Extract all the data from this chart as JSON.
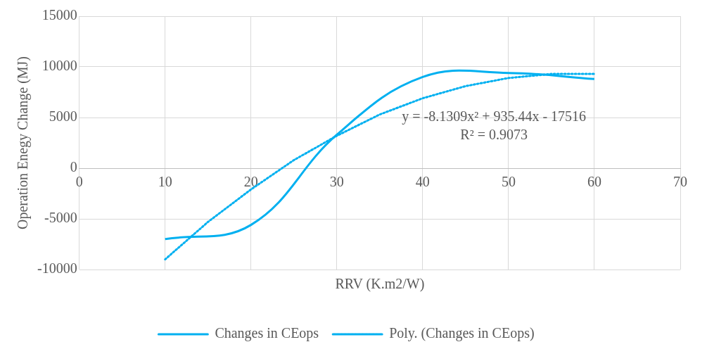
{
  "chart_data": {
    "type": "line",
    "xlabel": "RRV (K.m2/W)",
    "ylabel": "Operation Enegy Change (MJ)",
    "xlim": [
      0,
      70
    ],
    "xticks": [
      0,
      10,
      20,
      30,
      40,
      50,
      60,
      70
    ],
    "ylim": [
      -10000,
      15000
    ],
    "yticks": [
      -10000,
      -5000,
      0,
      5000,
      10000,
      15000
    ],
    "grid": true,
    "legend": "bottom",
    "marker": "none",
    "series": [
      {
        "name": "Changes in CEops",
        "color": "#00b0f0",
        "line_style": "solid",
        "x": [
          10,
          20,
          30,
          40,
          50,
          60
        ],
        "values": [
          -7000,
          -5600,
          3300,
          9000,
          9400,
          8800
        ]
      },
      {
        "name": "Poly. (Changes in CEops)",
        "color": "#00b0f0",
        "line_style": "dotted",
        "x": [
          10,
          15,
          20,
          25,
          30,
          35,
          40,
          45,
          50,
          55,
          60
        ],
        "values": [
          -9000,
          -5300,
          -2100,
          800,
          3200,
          5300,
          6900,
          8100,
          8900,
          9300,
          9300
        ]
      }
    ],
    "annotations": [
      "y = -8.1309x² + 935.44x - 17516",
      "R² = 0.9073"
    ]
  }
}
